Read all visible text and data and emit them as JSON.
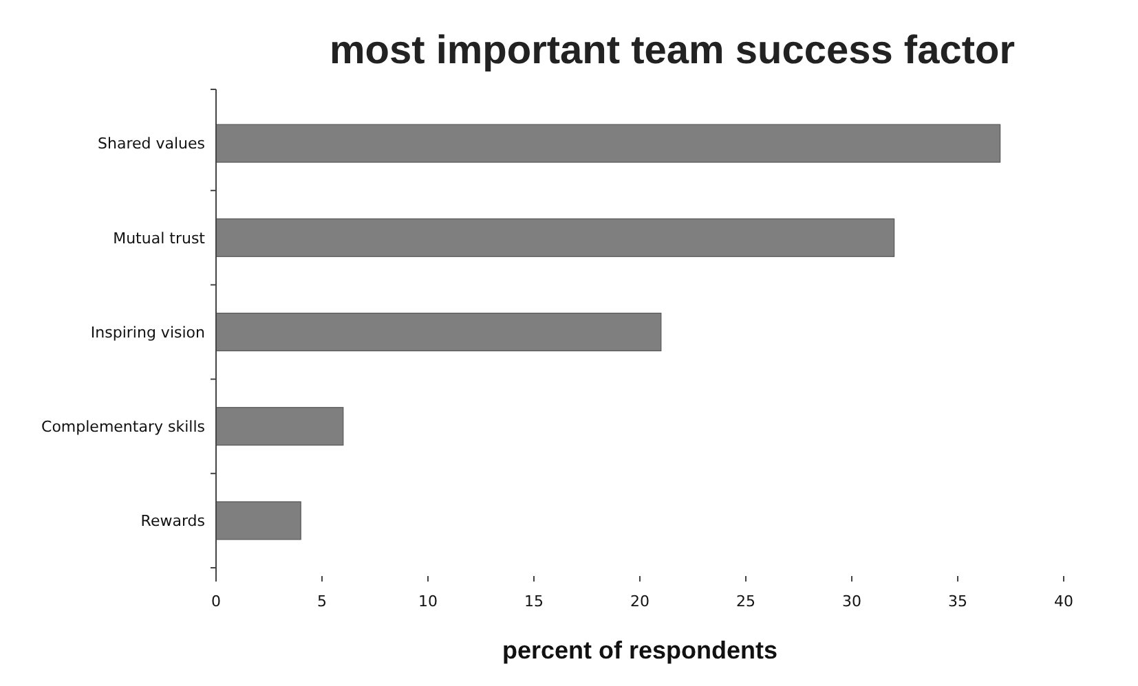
{
  "chart_data": {
    "type": "bar",
    "orientation": "horizontal",
    "title": "most important team success factor",
    "xlabel": "percent of respondents",
    "categories": [
      "Shared values",
      "Mutual trust",
      "Inspiring vision",
      "Complementary skills",
      "Rewards"
    ],
    "values": [
      37,
      32,
      21,
      6,
      4
    ],
    "color": "#7f7f7f",
    "xlim": [
      0,
      40
    ],
    "xticks": [
      0,
      5,
      10,
      15,
      20,
      25,
      30,
      35,
      40
    ],
    "grid": false
  }
}
